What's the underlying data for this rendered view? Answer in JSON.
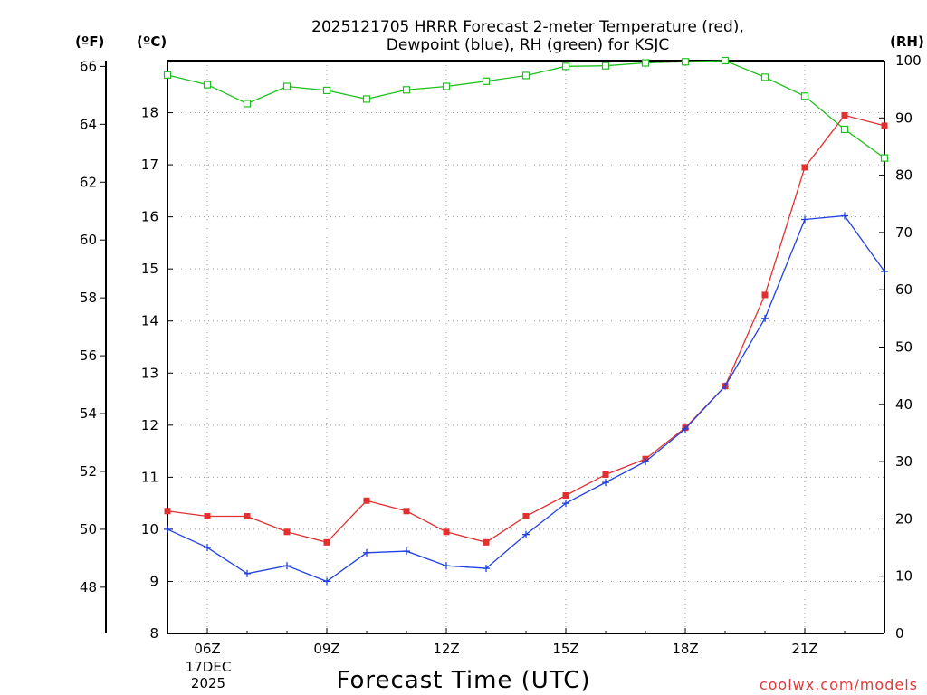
{
  "chart_data": {
    "type": "line",
    "title_line1": "2025121705 HRRR Forecast 2-meter Temperature (red),",
    "title_line2": "Dewpoint (blue), RH (green) for KSJC",
    "xlabel": "Forecast Time (UTC)",
    "date_label_line1": "17DEC",
    "date_label_line2": "2025",
    "unit_f": "(ºF)",
    "unit_c": "(ºC)",
    "unit_rh": "(RH)",
    "watermark": "coolwx.com/models",
    "x": [
      5,
      6,
      7,
      8,
      9,
      10,
      11,
      12,
      13,
      14,
      15,
      16,
      17,
      18,
      19,
      20,
      21,
      22,
      23
    ],
    "xlim": [
      5,
      23
    ],
    "x_ticks": [
      {
        "x": 6,
        "label": "06Z"
      },
      {
        "x": 9,
        "label": "09Z"
      },
      {
        "x": 12,
        "label": "12Z"
      },
      {
        "x": 15,
        "label": "15Z"
      },
      {
        "x": 18,
        "label": "18Z"
      },
      {
        "x": 21,
        "label": "21Z"
      }
    ],
    "c_axis": {
      "range": [
        8,
        19
      ],
      "ticks": [
        "8",
        "9",
        "10",
        "11",
        "12",
        "13",
        "14",
        "15",
        "16",
        "17",
        "18"
      ]
    },
    "f_axis": {
      "range": [
        46.4,
        66.2
      ],
      "ticks": [
        "48",
        "50",
        "52",
        "54",
        "56",
        "58",
        "60",
        "62",
        "64",
        "66"
      ]
    },
    "rh_axis": {
      "range": [
        0,
        100
      ],
      "ticks": [
        "0",
        "10",
        "20",
        "30",
        "40",
        "50",
        "60",
        "70",
        "80",
        "90",
        "100"
      ]
    },
    "series": [
      {
        "name": "Temperature",
        "axis": "c",
        "color": "#e03030",
        "marker": "filled-square",
        "values": [
          10.35,
          10.25,
          10.25,
          9.95,
          9.75,
          10.55,
          10.35,
          9.95,
          9.75,
          10.25,
          10.65,
          11.05,
          11.35,
          11.95,
          12.75,
          14.5,
          16.95,
          17.95,
          17.75
        ]
      },
      {
        "name": "Dewpoint",
        "axis": "c",
        "color": "#2040e0",
        "marker": "plus",
        "values": [
          10.0,
          9.65,
          9.15,
          9.3,
          9.0,
          9.55,
          9.58,
          9.3,
          9.25,
          9.9,
          10.5,
          10.9,
          11.3,
          11.93,
          12.75,
          14.05,
          15.95,
          16.02,
          14.95
        ]
      },
      {
        "name": "RH",
        "axis": "rh",
        "color": "#20c020",
        "marker": "open-square",
        "values": [
          97.5,
          95.8,
          92.5,
          95.5,
          94.8,
          93.3,
          94.9,
          95.5,
          96.4,
          97.4,
          99.0,
          99.1,
          99.6,
          99.8,
          100.0,
          97.1,
          93.8,
          88.0,
          83.0
        ]
      }
    ]
  }
}
